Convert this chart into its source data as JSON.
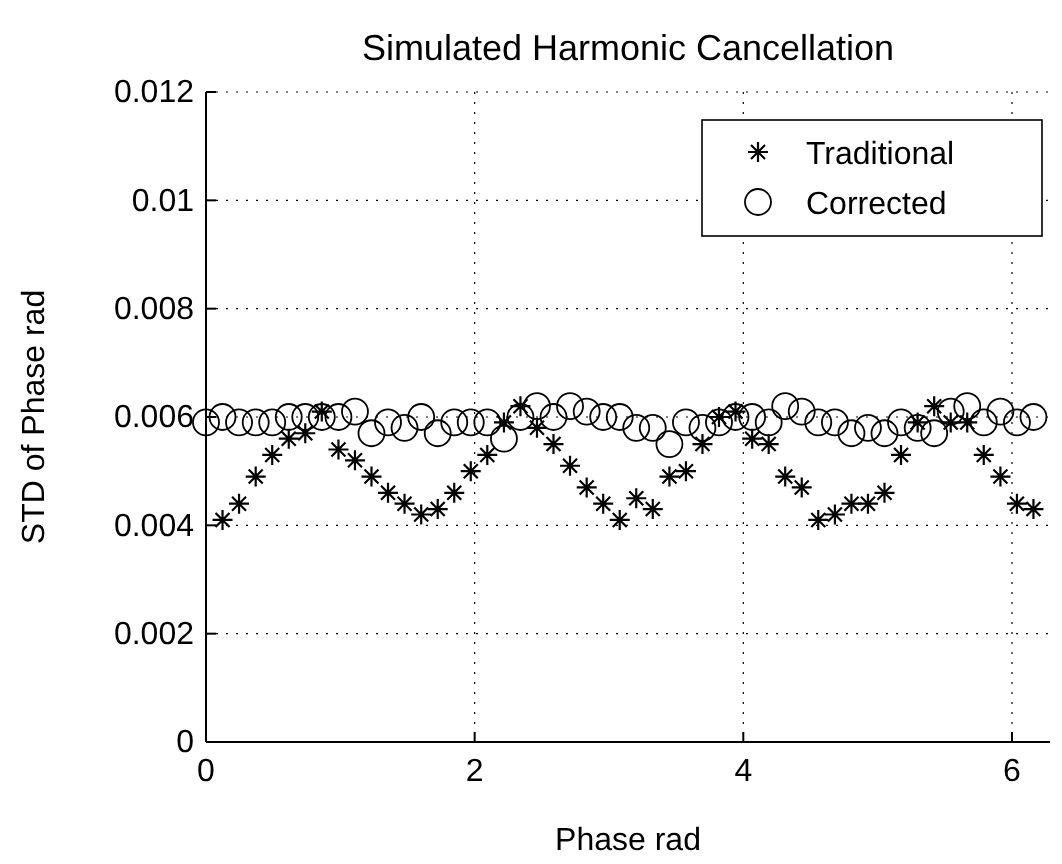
{
  "chart_data": {
    "type": "scatter",
    "title": "Simulated Harmonic Cancellation",
    "xlabel": "Phase rad",
    "ylabel": "STD of Phase rad",
    "x": [
      0,
      0.123,
      0.246,
      0.37,
      0.493,
      0.616,
      0.739,
      0.862,
      0.986,
      1.109,
      1.232,
      1.355,
      1.478,
      1.602,
      1.725,
      1.848,
      1.971,
      2.094,
      2.218,
      2.341,
      2.464,
      2.587,
      2.71,
      2.834,
      2.957,
      3.08,
      3.203,
      3.326,
      3.45,
      3.573,
      3.696,
      3.819,
      3.942,
      4.066,
      4.189,
      4.312,
      4.435,
      4.558,
      4.682,
      4.805,
      4.928,
      5.051,
      5.174,
      5.298,
      5.421,
      5.544,
      5.667,
      5.79,
      5.914,
      6.037,
      6.16
    ],
    "series": [
      {
        "name": "Traditional",
        "color": "#000000",
        "marker": "cross",
        "values": [
          null,
          0.0041,
          0.0044,
          0.0049,
          0.0053,
          0.0056,
          0.0057,
          0.0061,
          0.0054,
          0.0052,
          0.0049,
          0.0046,
          0.0044,
          0.0042,
          0.0043,
          0.0046,
          0.005,
          0.0053,
          0.0059,
          0.0062,
          0.0058,
          0.0055,
          0.0051,
          0.0047,
          0.0044,
          0.0041,
          0.0045,
          0.0043,
          0.0049,
          0.005,
          0.0055,
          0.006,
          0.0061,
          0.0056,
          0.0055,
          0.0049,
          0.0047,
          0.0041,
          0.0042,
          0.0044,
          0.0044,
          0.0046,
          0.0053,
          0.0059,
          0.0062,
          0.0059,
          0.0059,
          0.0053,
          0.0049,
          0.0044,
          0.0043
        ]
      },
      {
        "name": "Corrected",
        "color": "#000000",
        "marker": "circle",
        "values": [
          0.0059,
          0.006,
          0.0059,
          0.0059,
          0.0059,
          0.006,
          0.006,
          0.006,
          0.006,
          0.0061,
          0.0057,
          0.0059,
          0.0058,
          0.006,
          0.0057,
          0.0059,
          0.0059,
          0.0059,
          0.0056,
          0.006,
          0.0062,
          0.006,
          0.0062,
          0.0061,
          0.006,
          0.006,
          0.0058,
          0.0058,
          0.0055,
          0.0059,
          0.0058,
          0.0059,
          0.006,
          0.006,
          0.0059,
          0.0062,
          0.0061,
          0.0059,
          0.0059,
          0.0057,
          0.0058,
          0.0057,
          0.0059,
          0.0058,
          0.0057,
          0.0061,
          0.0062,
          0.0059,
          0.0061,
          0.0059,
          0.006
        ]
      }
    ],
    "xlim": [
      0,
      6.2832
    ],
    "xticks": [
      0,
      2,
      4,
      6
    ],
    "ylim": [
      0,
      0.012
    ],
    "yticks": [
      0,
      0.002,
      0.004,
      0.006,
      0.008,
      {
        "value": 0.01,
        "label": "0.01"
      },
      0.012
    ],
    "grid": true,
    "legend": "top right"
  }
}
